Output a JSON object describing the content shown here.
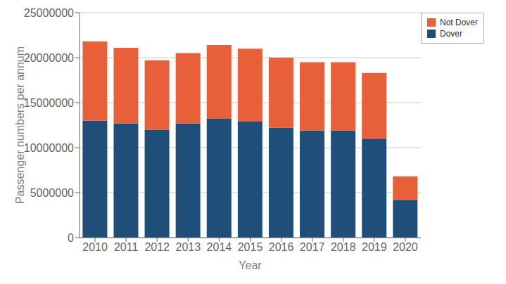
{
  "chart_data": {
    "type": "bar",
    "stacked": true,
    "categories": [
      "2010",
      "2011",
      "2012",
      "2013",
      "2014",
      "2015",
      "2016",
      "2017",
      "2018",
      "2019",
      "2020"
    ],
    "series": [
      {
        "name": "Dover",
        "color": "#1f4e79",
        "values": [
          13000000,
          12700000,
          12000000,
          12700000,
          13200000,
          12900000,
          12200000,
          11900000,
          11900000,
          11000000,
          4200000
        ]
      },
      {
        "name": "Not Dover",
        "color": "#e8603a",
        "values": [
          8800000,
          8400000,
          7700000,
          7800000,
          8200000,
          8100000,
          7800000,
          7600000,
          7600000,
          7300000,
          2600000
        ]
      }
    ],
    "xlabel": "Year",
    "ylabel": "Passenger numbers per annum",
    "ylim": [
      0,
      25000000
    ],
    "yticks": [
      0,
      5000000,
      10000000,
      15000000,
      20000000,
      25000000
    ],
    "grid": true,
    "legend": "upper right"
  }
}
